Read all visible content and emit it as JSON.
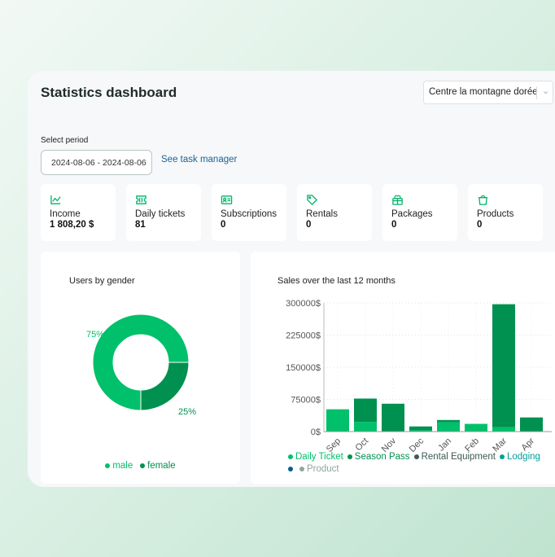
{
  "header": {
    "title": "Statistics dashboard",
    "location_select": "Centre la montagne dorée"
  },
  "period": {
    "label": "Select period",
    "value": "2024-08-06 - 2024-08-06",
    "task_link": "See task manager"
  },
  "stats": [
    {
      "icon": "chart-line-icon",
      "label": "Income",
      "value": "1 808,20 $"
    },
    {
      "icon": "ticket-icon",
      "label": "Daily tickets",
      "value": "81"
    },
    {
      "icon": "id-card-icon",
      "label": "Subscriptions",
      "value": "0"
    },
    {
      "icon": "tag-icon",
      "label": "Rentals",
      "value": "0"
    },
    {
      "icon": "gift-icon",
      "label": "Packages",
      "value": "0"
    },
    {
      "icon": "shopping-bag-icon",
      "label": "Products",
      "value": "0"
    }
  ],
  "chart_data": [
    {
      "type": "pie",
      "title": "Users by gender",
      "labels": [
        "male",
        "female"
      ],
      "values": [
        75,
        25
      ],
      "value_labels": [
        "75%",
        "25%"
      ],
      "colors": [
        "#00c06b",
        "#009150"
      ]
    },
    {
      "type": "bar",
      "stacked": true,
      "title": "Sales over the last 12 months",
      "categories": [
        "Sep",
        "Oct",
        "Nov",
        "Dec",
        "Jan",
        "Feb",
        "Mar",
        "Apr"
      ],
      "yticks": [
        "0$",
        "75000$",
        "150000$",
        "225000$",
        "300000$"
      ],
      "ylim": [
        0,
        300000
      ],
      "series": [
        {
          "name": "Daily Ticket",
          "color": "#00c06b",
          "values": [
            52000,
            22500,
            0,
            3000,
            22000,
            18000,
            10000,
            0
          ]
        },
        {
          "name": "Season Pass",
          "color": "#009150",
          "values": [
            0,
            54500,
            65000,
            9000,
            5000,
            0,
            287000,
            33000
          ]
        },
        {
          "name": "Rental Equipment",
          "color": "#3d5a55",
          "values": [
            0,
            0,
            0,
            0,
            0,
            0,
            0,
            0
          ]
        },
        {
          "name": "Lodging",
          "color": "#00a09a",
          "values": [
            0,
            0,
            0,
            0,
            0,
            0,
            0,
            0
          ]
        },
        {
          "name": "",
          "color": "#005f8f",
          "values": [
            0,
            0,
            0,
            0,
            0,
            0,
            0,
            0
          ]
        },
        {
          "name": "Product",
          "color": "#8fa5a3",
          "values": [
            0,
            0,
            0,
            0,
            0,
            0,
            0,
            0
          ]
        }
      ]
    }
  ]
}
